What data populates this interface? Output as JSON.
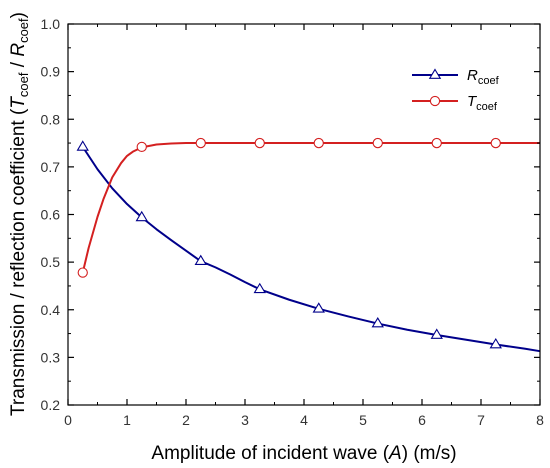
{
  "chart_data": {
    "type": "line",
    "xlabel_parts": [
      "Amplitude of incident wave (",
      "A",
      ") (m/s)"
    ],
    "ylabel_parts": [
      "Transmission / reflection coefficient (",
      "T",
      "coef",
      " / ",
      "R",
      "coef",
      ")"
    ],
    "xlim": [
      0,
      8
    ],
    "ylim": [
      0.2,
      1.0
    ],
    "x_ticks": [
      "0",
      "1",
      "2",
      "3",
      "4",
      "5",
      "6",
      "7",
      "8"
    ],
    "y_ticks": [
      "0.2",
      "0.3",
      "0.4",
      "0.5",
      "0.6",
      "0.7",
      "0.8",
      "0.9",
      "1.0"
    ],
    "legend_position": "top-right",
    "series": [
      {
        "name_main": "R",
        "name_sub": "coef",
        "color": "#00008B",
        "marker": "triangle",
        "curve": [
          [
            0.25,
            0.742
          ],
          [
            0.5,
            0.695
          ],
          [
            0.75,
            0.655
          ],
          [
            1.0,
            0.622
          ],
          [
            1.25,
            0.594
          ],
          [
            1.5,
            0.569
          ],
          [
            1.75,
            0.546
          ],
          [
            2.0,
            0.524
          ],
          [
            2.25,
            0.502
          ],
          [
            2.5,
            0.489
          ],
          [
            2.75,
            0.474
          ],
          [
            3.0,
            0.458
          ],
          [
            3.25,
            0.443
          ],
          [
            3.75,
            0.421
          ],
          [
            4.25,
            0.402
          ],
          [
            4.75,
            0.386
          ],
          [
            5.25,
            0.371
          ],
          [
            5.75,
            0.358
          ],
          [
            6.25,
            0.347
          ],
          [
            6.75,
            0.337
          ],
          [
            7.25,
            0.327
          ],
          [
            7.75,
            0.318
          ],
          [
            8.0,
            0.313
          ]
        ],
        "markers": [
          [
            0.25,
            0.742
          ],
          [
            1.25,
            0.594
          ],
          [
            2.25,
            0.502
          ],
          [
            3.25,
            0.443
          ],
          [
            4.25,
            0.402
          ],
          [
            5.25,
            0.371
          ],
          [
            6.25,
            0.347
          ],
          [
            7.25,
            0.327
          ]
        ]
      },
      {
        "name_main": "T",
        "name_sub": "coef",
        "color": "#D42020",
        "marker": "circle",
        "curve": [
          [
            0.25,
            0.478
          ],
          [
            0.35,
            0.53
          ],
          [
            0.5,
            0.595
          ],
          [
            0.6,
            0.632
          ],
          [
            0.75,
            0.678
          ],
          [
            0.9,
            0.708
          ],
          [
            1.0,
            0.723
          ],
          [
            1.1,
            0.732
          ],
          [
            1.25,
            0.741
          ],
          [
            1.5,
            0.747
          ],
          [
            1.75,
            0.749
          ],
          [
            2.0,
            0.75
          ],
          [
            2.25,
            0.75
          ],
          [
            8.0,
            0.75
          ]
        ],
        "markers": [
          [
            0.25,
            0.478
          ],
          [
            1.25,
            0.742
          ],
          [
            2.25,
            0.75
          ],
          [
            3.25,
            0.75
          ],
          [
            4.25,
            0.75
          ],
          [
            5.25,
            0.75
          ],
          [
            6.25,
            0.75
          ],
          [
            7.25,
            0.75
          ]
        ]
      }
    ]
  }
}
